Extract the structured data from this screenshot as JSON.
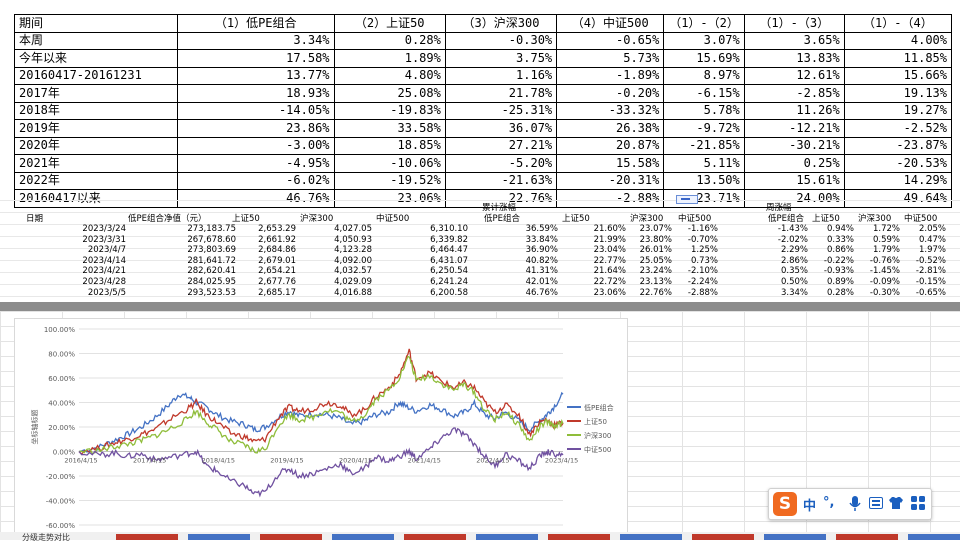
{
  "summary_table": {
    "headers": [
      "期间",
      "（1）低PE组合",
      "（2）上证50",
      "（3）沪深300",
      "（4）中证500",
      "（1）-（2）",
      "（1）-（3）",
      "（1）-（4）"
    ],
    "rows": [
      [
        "本周",
        "3.34%",
        "0.28%",
        "-0.30%",
        "-0.65%",
        "3.07%",
        "3.65%",
        "4.00%"
      ],
      [
        "今年以来",
        "17.58%",
        "1.89%",
        "3.75%",
        "5.73%",
        "15.69%",
        "13.83%",
        "11.85%"
      ],
      [
        "20160417-20161231",
        "13.77%",
        "4.80%",
        "1.16%",
        "-1.89%",
        "8.97%",
        "12.61%",
        "15.66%"
      ],
      [
        "2017年",
        "18.93%",
        "25.08%",
        "21.78%",
        "-0.20%",
        "-6.15%",
        "-2.85%",
        "19.13%"
      ],
      [
        "2018年",
        "-14.05%",
        "-19.83%",
        "-25.31%",
        "-33.32%",
        "5.78%",
        "11.26%",
        "19.27%"
      ],
      [
        "2019年",
        "23.86%",
        "33.58%",
        "36.07%",
        "26.38%",
        "-9.72%",
        "-12.21%",
        "-2.52%"
      ],
      [
        "2020年",
        "-3.00%",
        "18.85%",
        "27.21%",
        "20.87%",
        "-21.85%",
        "-30.21%",
        "-23.87%"
      ],
      [
        "2021年",
        "-4.95%",
        "-10.06%",
        "-5.20%",
        "15.58%",
        "5.11%",
        "0.25%",
        "-20.53%"
      ],
      [
        "2022年",
        "-6.02%",
        "-19.52%",
        "-21.63%",
        "-20.31%",
        "13.50%",
        "15.61%",
        "14.29%"
      ],
      [
        "20160417以来",
        "46.76%",
        "23.06%",
        "22.76%",
        "-2.88%",
        "23.71%",
        "24.00%",
        "49.64%"
      ]
    ]
  },
  "daily_table": {
    "group_cum": "累计涨幅",
    "group_week": "周涨幅",
    "headers_left": [
      "日期",
      "低PE组合净值（元）",
      "上证50",
      "沪深300",
      "中证500"
    ],
    "headers_cum": [
      "低PE组合",
      "上证50",
      "沪深300",
      "中证500"
    ],
    "headers_week": [
      "低PE组合",
      "上证50",
      "沪深300",
      "中证500"
    ],
    "rows": [
      [
        "2023/3/24",
        "273,183.75",
        "2,653.29",
        "4,027.05",
        "6,310.10",
        "36.59%",
        "21.60%",
        "23.07%",
        "-1.16%",
        "-1.43%",
        "0.94%",
        "1.72%",
        "2.05%"
      ],
      [
        "2023/3/31",
        "267,678.60",
        "2,661.92",
        "4,050.93",
        "6,339.82",
        "33.84%",
        "21.99%",
        "23.80%",
        "-0.70%",
        "-2.02%",
        "0.33%",
        "0.59%",
        "0.47%"
      ],
      [
        "2023/4/7",
        "273,803.69",
        "2,684.86",
        "4,123.28",
        "6,464.47",
        "36.90%",
        "23.04%",
        "26.01%",
        "1.25%",
        "2.29%",
        "0.86%",
        "1.79%",
        "1.97%"
      ],
      [
        "2023/4/14",
        "281,641.72",
        "2,679.01",
        "4,092.00",
        "6,431.07",
        "40.82%",
        "22.77%",
        "25.05%",
        "0.73%",
        "2.86%",
        "-0.22%",
        "-0.76%",
        "-0.52%"
      ],
      [
        "2023/4/21",
        "282,620.41",
        "2,654.21",
        "4,032.57",
        "6,250.54",
        "41.31%",
        "21.64%",
        "23.24%",
        "-2.10%",
        "0.35%",
        "-0.93%",
        "-1.45%",
        "-2.81%"
      ],
      [
        "2023/4/28",
        "284,025.95",
        "2,677.76",
        "4,029.09",
        "6,241.24",
        "42.01%",
        "22.72%",
        "23.13%",
        "-2.24%",
        "0.50%",
        "0.89%",
        "-0.09%",
        "-0.15%"
      ],
      [
        "2023/5/5",
        "293,523.53",
        "2,685.17",
        "4,016.88",
        "6,200.58",
        "46.76%",
        "23.06%",
        "22.76%",
        "-2.88%",
        "3.34%",
        "0.28%",
        "-0.30%",
        "-0.65%"
      ]
    ]
  },
  "chart_data": {
    "type": "line",
    "ylabel": "坐标轴标题",
    "ylim": [
      -60,
      100
    ],
    "yticks": [
      "100.00%",
      "80.00%",
      "60.00%",
      "40.00%",
      "20.00%",
      "0.00%",
      "-20.00%",
      "-40.00%",
      "-60.00%"
    ],
    "xticks": [
      "2016/4/15",
      "2017/4/15",
      "2018/4/15",
      "2019/4/15",
      "2020/4/15",
      "2021/4/15",
      "2022/4/15",
      "2023/4/15"
    ],
    "legend_position": "right",
    "x_start_year": 2016.29,
    "x_end_year": 2023.34,
    "series": [
      {
        "name": "低PE组合",
        "color": "#4472c4",
        "points": [
          [
            2016.29,
            0
          ],
          [
            2016.6,
            4
          ],
          [
            2016.8,
            9
          ],
          [
            2017.0,
            14
          ],
          [
            2017.2,
            20
          ],
          [
            2017.4,
            28
          ],
          [
            2017.6,
            38
          ],
          [
            2017.75,
            47
          ],
          [
            2017.9,
            44
          ],
          [
            2018.0,
            40
          ],
          [
            2018.15,
            36
          ],
          [
            2018.3,
            30
          ],
          [
            2018.5,
            25
          ],
          [
            2018.7,
            22
          ],
          [
            2018.85,
            18
          ],
          [
            2019.0,
            20
          ],
          [
            2019.2,
            28
          ],
          [
            2019.35,
            33
          ],
          [
            2019.5,
            29
          ],
          [
            2019.7,
            31
          ],
          [
            2019.9,
            30
          ],
          [
            2020.1,
            27
          ],
          [
            2020.25,
            22
          ],
          [
            2020.45,
            25
          ],
          [
            2020.6,
            30
          ],
          [
            2020.8,
            32
          ],
          [
            2020.95,
            40
          ],
          [
            2021.05,
            37
          ],
          [
            2021.2,
            33
          ],
          [
            2021.4,
            38
          ],
          [
            2021.55,
            35
          ],
          [
            2021.75,
            29
          ],
          [
            2021.9,
            32
          ],
          [
            2022.05,
            39
          ],
          [
            2022.2,
            30
          ],
          [
            2022.35,
            27
          ],
          [
            2022.5,
            32
          ],
          [
            2022.7,
            25
          ],
          [
            2022.85,
            18
          ],
          [
            2023.0,
            25
          ],
          [
            2023.1,
            30
          ],
          [
            2023.2,
            36
          ],
          [
            2023.34,
            46.76
          ]
        ]
      },
      {
        "name": "上证50",
        "color": "#c0392b",
        "points": [
          [
            2016.29,
            0
          ],
          [
            2016.6,
            3
          ],
          [
            2016.8,
            7
          ],
          [
            2017.0,
            10
          ],
          [
            2017.2,
            14
          ],
          [
            2017.4,
            18
          ],
          [
            2017.6,
            26
          ],
          [
            2017.85,
            34
          ],
          [
            2018.0,
            40
          ],
          [
            2018.15,
            30
          ],
          [
            2018.3,
            24
          ],
          [
            2018.5,
            15
          ],
          [
            2018.7,
            12
          ],
          [
            2018.85,
            8
          ],
          [
            2019.0,
            10
          ],
          [
            2019.2,
            28
          ],
          [
            2019.35,
            36
          ],
          [
            2019.5,
            33
          ],
          [
            2019.7,
            35
          ],
          [
            2019.9,
            40
          ],
          [
            2020.1,
            38
          ],
          [
            2020.25,
            30
          ],
          [
            2020.45,
            34
          ],
          [
            2020.6,
            44
          ],
          [
            2020.8,
            52
          ],
          [
            2020.95,
            62
          ],
          [
            2021.1,
            82
          ],
          [
            2021.2,
            60
          ],
          [
            2021.4,
            64
          ],
          [
            2021.55,
            58
          ],
          [
            2021.75,
            52
          ],
          [
            2021.9,
            56
          ],
          [
            2022.05,
            52
          ],
          [
            2022.2,
            40
          ],
          [
            2022.35,
            32
          ],
          [
            2022.5,
            38
          ],
          [
            2022.7,
            30
          ],
          [
            2022.85,
            14
          ],
          [
            2023.0,
            24
          ],
          [
            2023.1,
            26
          ],
          [
            2023.2,
            22
          ],
          [
            2023.34,
            23.06
          ]
        ]
      },
      {
        "name": "沪深300",
        "color": "#8fbd3a",
        "points": [
          [
            2016.29,
            0
          ],
          [
            2016.6,
            1
          ],
          [
            2016.8,
            4
          ],
          [
            2017.0,
            6
          ],
          [
            2017.2,
            9
          ],
          [
            2017.4,
            13
          ],
          [
            2017.6,
            18
          ],
          [
            2017.85,
            26
          ],
          [
            2018.0,
            33
          ],
          [
            2018.15,
            24
          ],
          [
            2018.3,
            18
          ],
          [
            2018.5,
            8
          ],
          [
            2018.7,
            5
          ],
          [
            2018.85,
            0
          ],
          [
            2019.0,
            2
          ],
          [
            2019.2,
            22
          ],
          [
            2019.35,
            30
          ],
          [
            2019.5,
            26
          ],
          [
            2019.7,
            28
          ],
          [
            2019.9,
            34
          ],
          [
            2020.1,
            32
          ],
          [
            2020.25,
            24
          ],
          [
            2020.45,
            30
          ],
          [
            2020.6,
            42
          ],
          [
            2020.8,
            50
          ],
          [
            2020.95,
            60
          ],
          [
            2021.1,
            78
          ],
          [
            2021.2,
            58
          ],
          [
            2021.4,
            62
          ],
          [
            2021.55,
            56
          ],
          [
            2021.75,
            50
          ],
          [
            2021.9,
            55
          ],
          [
            2022.05,
            48
          ],
          [
            2022.2,
            34
          ],
          [
            2022.35,
            26
          ],
          [
            2022.5,
            32
          ],
          [
            2022.7,
            22
          ],
          [
            2022.85,
            8
          ],
          [
            2023.0,
            20
          ],
          [
            2023.1,
            24
          ],
          [
            2023.2,
            21
          ],
          [
            2023.34,
            22.76
          ]
        ]
      },
      {
        "name": "中证500",
        "color": "#7051a0",
        "points": [
          [
            2016.29,
            0
          ],
          [
            2016.6,
            -3
          ],
          [
            2016.8,
            -1
          ],
          [
            2017.0,
            -4
          ],
          [
            2017.2,
            -2
          ],
          [
            2017.4,
            -7
          ],
          [
            2017.6,
            -5
          ],
          [
            2017.85,
            -2
          ],
          [
            2018.0,
            0
          ],
          [
            2018.15,
            -12
          ],
          [
            2018.3,
            -16
          ],
          [
            2018.5,
            -24
          ],
          [
            2018.7,
            -28
          ],
          [
            2018.85,
            -35
          ],
          [
            2019.0,
            -33
          ],
          [
            2019.2,
            -18
          ],
          [
            2019.35,
            -14
          ],
          [
            2019.5,
            -20
          ],
          [
            2019.7,
            -18
          ],
          [
            2019.9,
            -14
          ],
          [
            2020.1,
            -10
          ],
          [
            2020.25,
            -18
          ],
          [
            2020.45,
            -14
          ],
          [
            2020.6,
            -4
          ],
          [
            2020.8,
            -8
          ],
          [
            2020.95,
            -4
          ],
          [
            2021.1,
            0
          ],
          [
            2021.2,
            -6
          ],
          [
            2021.4,
            2
          ],
          [
            2021.55,
            10
          ],
          [
            2021.75,
            18
          ],
          [
            2021.9,
            14
          ],
          [
            2022.05,
            6
          ],
          [
            2022.2,
            -4
          ],
          [
            2022.35,
            -12
          ],
          [
            2022.5,
            -2
          ],
          [
            2022.7,
            -8
          ],
          [
            2022.85,
            -14
          ],
          [
            2023.0,
            -4
          ],
          [
            2023.1,
            0
          ],
          [
            2023.2,
            -2
          ],
          [
            2023.34,
            -2.88
          ]
        ]
      }
    ]
  },
  "ime": {
    "logo": "S",
    "item_mode": "中",
    "item_punct": "°,"
  },
  "sheet_tabs": {
    "first_label": "分级走势对比",
    "colors": [
      "#c0392b",
      "#4472c4",
      "#c0392b",
      "#4472c4",
      "#c0392b",
      "#4472c4",
      "#c0392b",
      "#4472c4",
      "#c0392b",
      "#4472c4",
      "#c0392b",
      "#4472c4"
    ]
  }
}
